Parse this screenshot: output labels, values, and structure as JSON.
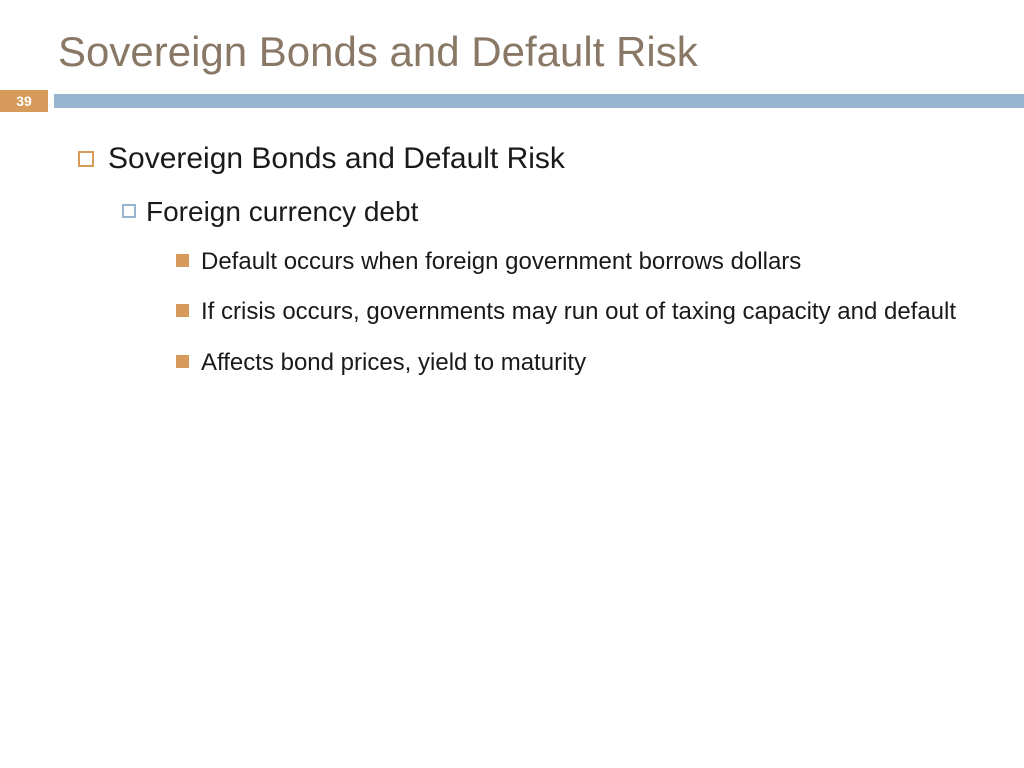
{
  "slide": {
    "title": "Sovereign Bonds and Default Risk",
    "page_number": "39",
    "content": {
      "level1": {
        "text": "Sovereign Bonds and Default Risk"
      },
      "level2": {
        "text": "Foreign currency debt"
      },
      "level3": [
        {
          "text": "Default occurs when foreign government borrows dollars"
        },
        {
          "text": "If crisis occurs, governments may run out of taxing capacity and default"
        },
        {
          "text": "Affects bond prices, yield to maturity"
        }
      ]
    }
  },
  "colors": {
    "title_color": "#8a7866",
    "accent_orange": "#d69a5a",
    "accent_blue": "#99b4ce",
    "text_color": "#1a1a1a",
    "background": "#ffffff"
  },
  "typography": {
    "title_fontsize": 42,
    "l1_fontsize": 30,
    "l2_fontsize": 28,
    "l3_fontsize": 24
  }
}
